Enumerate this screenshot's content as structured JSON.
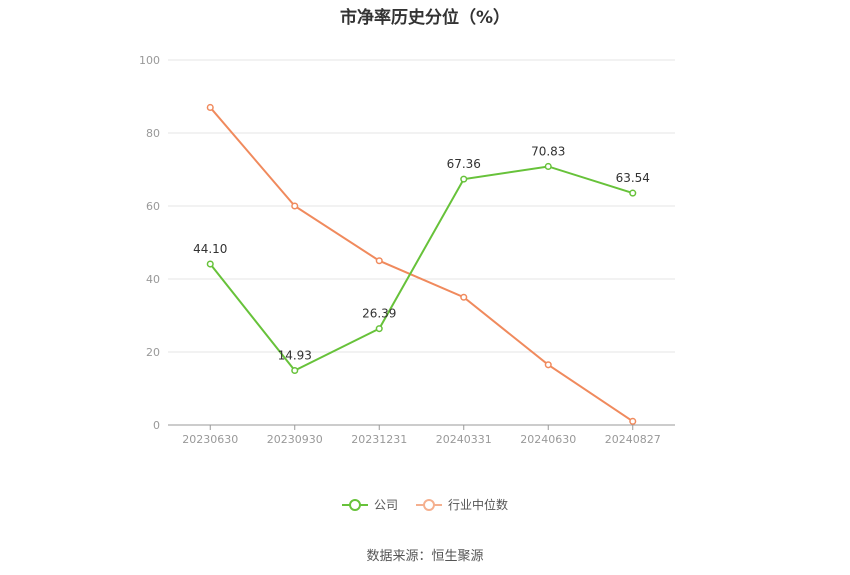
{
  "chart_data": {
    "type": "line",
    "title": "市净率历史分位（%）",
    "categories": [
      "20230630",
      "20230930",
      "20231231",
      "20240331",
      "20240630",
      "20240827"
    ],
    "ylim": [
      0,
      100
    ],
    "yticks": [
      0,
      20,
      40,
      60,
      80,
      100
    ],
    "grid": true,
    "legend_position": "bottom",
    "series": [
      {
        "name": "公司",
        "color": "#67c23a",
        "values": [
          44.1,
          14.93,
          26.39,
          67.36,
          70.83,
          63.54
        ],
        "labels": [
          "44.10",
          "14.93",
          "26.39",
          "67.36",
          "70.83",
          "63.54"
        ]
      },
      {
        "name": "行业中位数",
        "color": "#f08a5d",
        "values": [
          87.0,
          60.0,
          45.0,
          35.0,
          16.5,
          1.0
        ]
      }
    ]
  },
  "source": "数据来源：恒生聚源"
}
